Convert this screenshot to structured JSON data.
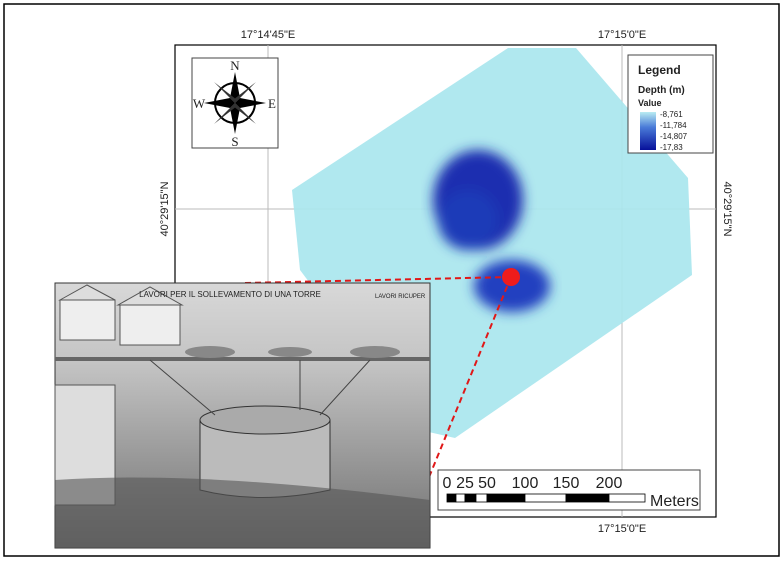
{
  "coordinates": {
    "top_left": "17°14'45\"E",
    "top_right": "17°15'0\"E",
    "bottom": "17°15'0\"E",
    "left": "40°29'15\"N",
    "right": "40°29'15\"N"
  },
  "compass": {
    "north": "N",
    "south": "S",
    "east": "E",
    "west": "W"
  },
  "legend": {
    "title": "Legend",
    "layer": "Depth (m)",
    "field": "Value",
    "labels": [
      "-8,761",
      "-11,784",
      "-14,807",
      "-17,83"
    ]
  },
  "scale_bar": {
    "labels": [
      "0",
      "25",
      "50",
      "100",
      "150",
      "200"
    ],
    "unit": "Meters"
  },
  "inset": {
    "title": "LAVORI PER IL SOLLEVAMENTO DI UNA TORRE",
    "side_note": "LAVORI RICUPER"
  }
}
